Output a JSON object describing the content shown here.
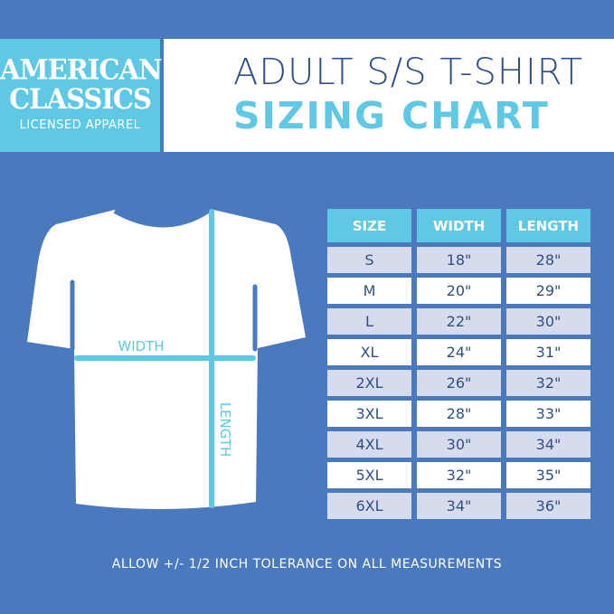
{
  "logo": {
    "line1": "AMERICAN",
    "line2": "CLASSICS",
    "line3": "LICENSED APPAREL"
  },
  "title": {
    "line1": "ADULT S/S T-SHIRT",
    "line2": "SIZING CHART"
  },
  "diagram": {
    "width_label": "WIDTH",
    "length_label": "LENGTH"
  },
  "table": {
    "headers": [
      "SIZE",
      "WIDTH",
      "LENGTH"
    ],
    "rows": [
      [
        "S",
        "18\"",
        "28\""
      ],
      [
        "M",
        "20\"",
        "29\""
      ],
      [
        "L",
        "22\"",
        "30\""
      ],
      [
        "XL",
        "24\"",
        "31\""
      ],
      [
        "2XL",
        "26\"",
        "32\""
      ],
      [
        "3XL",
        "28\"",
        "33\""
      ],
      [
        "4XL",
        "30\"",
        "34\""
      ],
      [
        "5XL",
        "32\"",
        "35\""
      ],
      [
        "6XL",
        "34\"",
        "36\""
      ]
    ]
  },
  "footer": "ALLOW +/- 1/2 INCH TOLERANCE ON ALL MEASUREMENTS",
  "colors": {
    "background": "#4a79bd",
    "accent": "#5ec8e5",
    "text": "#2f4f86",
    "row_alt": "#d6dbee"
  }
}
